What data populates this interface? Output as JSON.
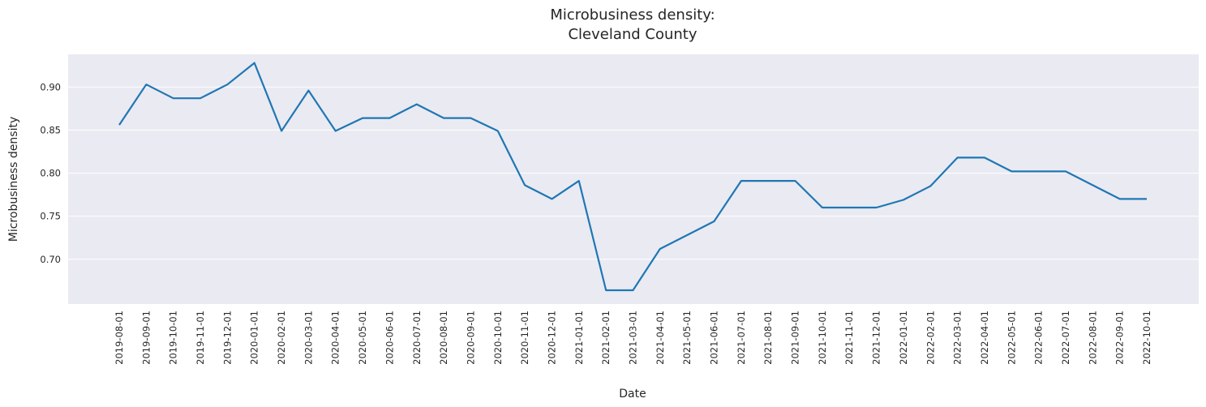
{
  "chart_data": {
    "type": "line",
    "title_line1": "Microbusiness density:",
    "title_line2": "Cleveland County",
    "xlabel": "Date",
    "ylabel": "Microbusiness density",
    "ylim": [
      0.648,
      0.938
    ],
    "yticks": [
      "0.70",
      "0.75",
      "0.80",
      "0.85",
      "0.90"
    ],
    "grid": true,
    "background_color": "#eaeaf2",
    "line_color": "#1f77b4",
    "x": [
      "2019-08-01",
      "2019-09-01",
      "2019-10-01",
      "2019-11-01",
      "2019-12-01",
      "2020-01-01",
      "2020-02-01",
      "2020-03-01",
      "2020-04-01",
      "2020-05-01",
      "2020-06-01",
      "2020-07-01",
      "2020-08-01",
      "2020-09-01",
      "2020-10-01",
      "2020-11-01",
      "2020-12-01",
      "2021-01-01",
      "2021-02-01",
      "2021-03-01",
      "2021-04-01",
      "2021-05-01",
      "2021-06-01",
      "2021-07-01",
      "2021-08-01",
      "2021-09-01",
      "2021-10-01",
      "2021-11-01",
      "2021-12-01",
      "2022-01-01",
      "2022-02-01",
      "2022-03-01",
      "2022-04-01",
      "2022-05-01",
      "2022-06-01",
      "2022-07-01",
      "2022-08-01",
      "2022-09-01",
      "2022-10-01"
    ],
    "values": [
      0.856,
      0.903,
      0.887,
      0.887,
      0.903,
      0.928,
      0.849,
      0.896,
      0.849,
      0.864,
      0.864,
      0.88,
      0.864,
      0.864,
      0.849,
      0.786,
      0.77,
      0.791,
      0.664,
      0.664,
      0.712,
      0.728,
      0.744,
      0.791,
      0.791,
      0.791,
      0.76,
      0.76,
      0.76,
      0.769,
      0.785,
      0.818,
      0.818,
      0.802,
      0.802,
      0.802,
      0.786,
      0.77,
      0.77
    ]
  }
}
